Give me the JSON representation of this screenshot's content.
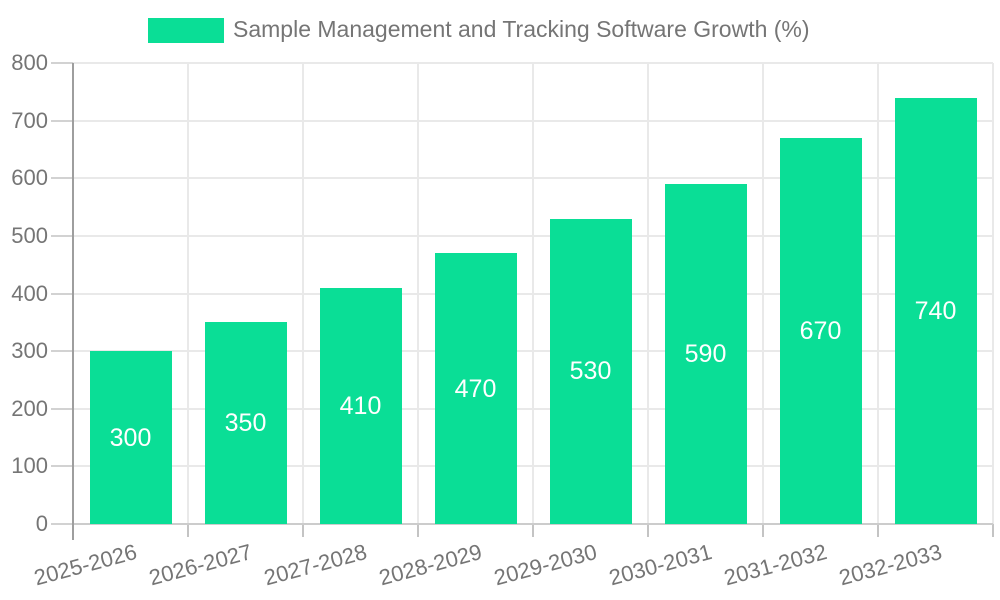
{
  "legend": {
    "swatch_color": "#0ade96",
    "label": "Sample Management and Tracking Software Growth (%)"
  },
  "chart_data": {
    "type": "bar",
    "title": "Sample Management and Tracking Software Growth (%)",
    "categories": [
      "2025-2026",
      "2026-2027",
      "2027-2028",
      "2028-2029",
      "2029-2030",
      "2030-2031",
      "2031-2032",
      "2032-2033"
    ],
    "values": [
      300,
      350,
      410,
      470,
      530,
      590,
      670,
      740
    ],
    "xlabel": "",
    "ylabel": "",
    "ylim": [
      0,
      800
    ],
    "yticks": [
      0,
      100,
      200,
      300,
      400,
      500,
      600,
      700,
      800
    ],
    "grid": true,
    "legend_position": "top",
    "value_label_position": "inside-center",
    "colors": {
      "bar": "#0ade96",
      "value_label": "#ffffff",
      "axis_text": "#757575",
      "gridline": "#e9e9e9",
      "background": "#ffffff"
    }
  }
}
